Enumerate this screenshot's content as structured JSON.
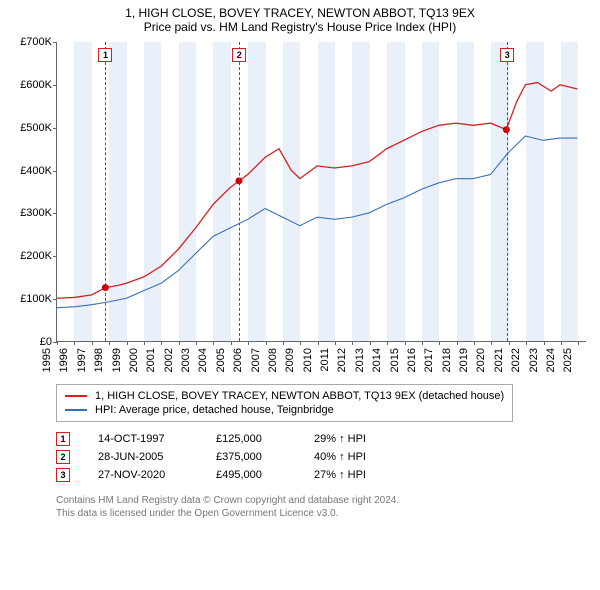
{
  "title_line1": "1, HIGH CLOSE, BOVEY TRACEY, NEWTON ABBOT, TQ13 9EX",
  "title_line2": "Price paid vs. HM Land Registry's House Price Index (HPI)",
  "chart": {
    "type": "line",
    "x_years": [
      1995,
      1996,
      1997,
      1998,
      1999,
      2000,
      2001,
      2002,
      2003,
      2004,
      2005,
      2006,
      2007,
      2008,
      2009,
      2010,
      2011,
      2012,
      2013,
      2014,
      2015,
      2016,
      2017,
      2018,
      2019,
      2020,
      2021,
      2022,
      2023,
      2024,
      2025
    ],
    "xlim": [
      1995,
      2025.5
    ],
    "ylim": [
      0,
      700000
    ],
    "ytick_step": 100000,
    "ytick_labels": [
      "£0",
      "£100K",
      "£200K",
      "£300K",
      "£400K",
      "£500K",
      "£600K",
      "£700K"
    ],
    "band_color": "#eaf0fa",
    "band_years_even": true,
    "background_color": "#ffffff",
    "axis_color": "#666666",
    "tick_fontsize": 11,
    "series": [
      {
        "id": "property",
        "label": "1, HIGH CLOSE, BOVEY TRACEY, NEWTON ABBOT, TQ13 9EX (detached house)",
        "color": "#d42020",
        "width": 1.3,
        "points": [
          [
            1995,
            100000
          ],
          [
            1996,
            102000
          ],
          [
            1997,
            108000
          ],
          [
            1997.8,
            125000
          ],
          [
            1998.5,
            130000
          ],
          [
            1999,
            135000
          ],
          [
            2000,
            150000
          ],
          [
            2001,
            175000
          ],
          [
            2002,
            215000
          ],
          [
            2003,
            265000
          ],
          [
            2004,
            320000
          ],
          [
            2005,
            360000
          ],
          [
            2005.5,
            375000
          ],
          [
            2006,
            390000
          ],
          [
            2007,
            430000
          ],
          [
            2007.8,
            450000
          ],
          [
            2008.5,
            400000
          ],
          [
            2009,
            380000
          ],
          [
            2009.5,
            395000
          ],
          [
            2010,
            410000
          ],
          [
            2011,
            405000
          ],
          [
            2012,
            410000
          ],
          [
            2013,
            420000
          ],
          [
            2014,
            450000
          ],
          [
            2015,
            470000
          ],
          [
            2016,
            490000
          ],
          [
            2017,
            505000
          ],
          [
            2018,
            510000
          ],
          [
            2019,
            505000
          ],
          [
            2020,
            510000
          ],
          [
            2020.9,
            495000
          ],
          [
            2021.5,
            560000
          ],
          [
            2022,
            600000
          ],
          [
            2022.7,
            605000
          ],
          [
            2023.5,
            585000
          ],
          [
            2024,
            600000
          ],
          [
            2025,
            590000
          ]
        ]
      },
      {
        "id": "hpi",
        "label": "HPI: Average price, detached house, Teignbridge",
        "color": "#3a6fb7",
        "width": 1.1,
        "points": [
          [
            1995,
            78000
          ],
          [
            1996,
            80000
          ],
          [
            1997,
            85000
          ],
          [
            1998,
            92000
          ],
          [
            1999,
            100000
          ],
          [
            2000,
            118000
          ],
          [
            2001,
            135000
          ],
          [
            2002,
            165000
          ],
          [
            2003,
            205000
          ],
          [
            2004,
            245000
          ],
          [
            2005,
            265000
          ],
          [
            2006,
            285000
          ],
          [
            2007,
            310000
          ],
          [
            2008,
            290000
          ],
          [
            2009,
            270000
          ],
          [
            2010,
            290000
          ],
          [
            2011,
            285000
          ],
          [
            2012,
            290000
          ],
          [
            2013,
            300000
          ],
          [
            2014,
            320000
          ],
          [
            2015,
            335000
          ],
          [
            2016,
            355000
          ],
          [
            2017,
            370000
          ],
          [
            2018,
            380000
          ],
          [
            2019,
            380000
          ],
          [
            2020,
            390000
          ],
          [
            2021,
            440000
          ],
          [
            2022,
            480000
          ],
          [
            2023,
            470000
          ],
          [
            2024,
            475000
          ],
          [
            2025,
            475000
          ]
        ]
      }
    ],
    "sale_markers": [
      {
        "n": "1",
        "year": 1997.79,
        "price": 125000,
        "color": "#d42020"
      },
      {
        "n": "2",
        "year": 2005.49,
        "price": 375000,
        "color": "#d42020"
      },
      {
        "n": "3",
        "year": 2020.91,
        "price": 495000,
        "color": "#d42020"
      }
    ]
  },
  "legend": {
    "border_color": "#aaaaaa"
  },
  "sales_table": {
    "rows": [
      {
        "n": "1",
        "date": "14-OCT-1997",
        "price": "£125,000",
        "rel": "29% ↑ HPI",
        "color": "#d42020"
      },
      {
        "n": "2",
        "date": "28-JUN-2005",
        "price": "£375,000",
        "rel": "40% ↑ HPI",
        "color": "#d42020"
      },
      {
        "n": "3",
        "date": "27-NOV-2020",
        "price": "£495,000",
        "rel": "27% ↑ HPI",
        "color": "#d42020"
      }
    ]
  },
  "footer": {
    "line1": "Contains HM Land Registry data © Crown copyright and database right 2024.",
    "line2": "This data is licensed under the Open Government Licence v3.0."
  }
}
